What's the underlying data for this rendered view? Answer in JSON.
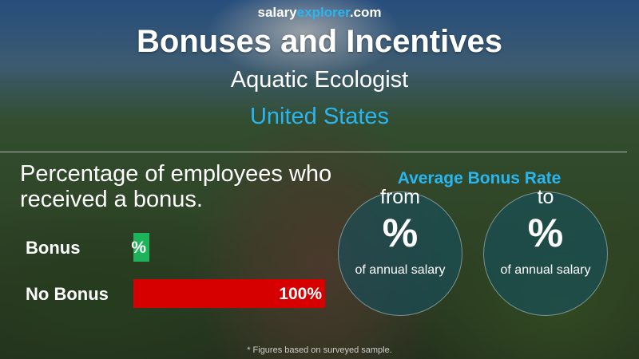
{
  "logo": {
    "part1": "salary",
    "part2": "explorer",
    "part3": ".com"
  },
  "header": {
    "title": "Bonuses and Incentives",
    "job": "Aquatic Ecologist",
    "country": "United States"
  },
  "left": {
    "heading": "Percentage of employees who received a bonus."
  },
  "chart_data": {
    "type": "bar",
    "orientation": "horizontal",
    "categories": [
      "Bonus",
      "No Bonus"
    ],
    "values": [
      0,
      100
    ],
    "data_labels": [
      "%",
      "100%"
    ],
    "colors": [
      "#1cb35a",
      "#d60000"
    ],
    "xlim": [
      0,
      100
    ]
  },
  "right": {
    "heading": "Average Bonus Rate",
    "from": {
      "word": "from",
      "value": "%",
      "sub": "of annual salary"
    },
    "to": {
      "word": "to",
      "value": "%",
      "sub": "of annual salary"
    }
  },
  "footnote": "* Figures based on surveyed sample."
}
